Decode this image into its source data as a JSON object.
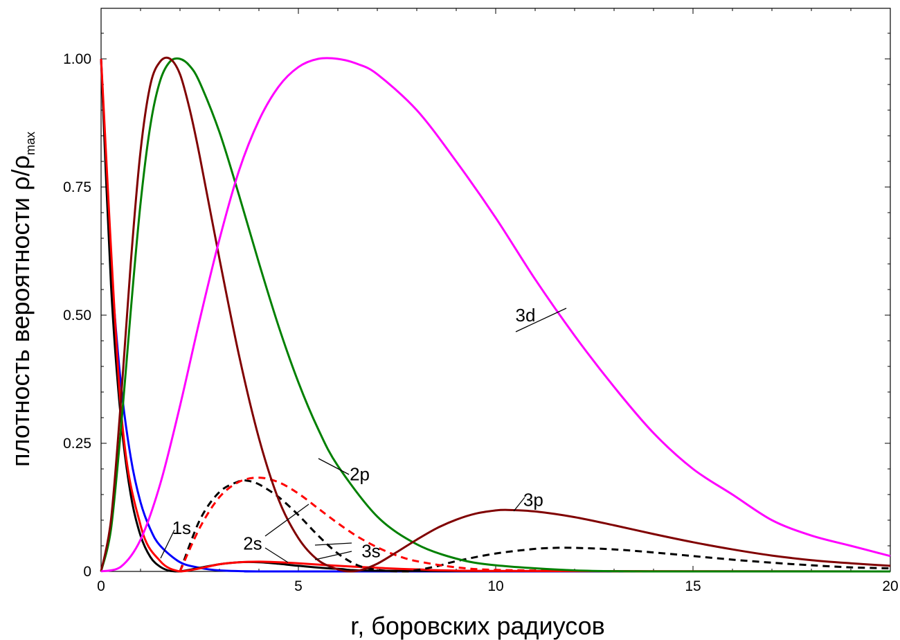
{
  "chart_data": {
    "type": "line",
    "xlabel": "r, боровских радиусов",
    "ylabel_main": "плотность вероятности ρ/ρ",
    "ylabel_sub": "max",
    "xlim": [
      0,
      20
    ],
    "ylim": [
      0,
      1.1
    ],
    "x_ticks": [
      0,
      5,
      10,
      15,
      20
    ],
    "x_tick_labels": [
      "0",
      "5",
      "10",
      "15",
      "20"
    ],
    "y_ticks": [
      0,
      0.25,
      0.5,
      0.75,
      1.0
    ],
    "y_tick_labels": [
      "0",
      "0.25",
      "0.50",
      "0.75",
      "1.00"
    ],
    "grid": false,
    "series": [
      {
        "color": "#0000ff",
        "dash": false,
        "x": [
          0,
          0.25,
          0.5,
          0.75,
          1.0,
          1.25,
          1.5,
          2.0,
          2.5,
          3.0,
          4.0,
          5.0,
          20
        ],
        "y": [
          1.0,
          0.607,
          0.368,
          0.223,
          0.135,
          0.082,
          0.05,
          0.018,
          0.007,
          0.002,
          0.0,
          0.0,
          0.0
        ]
      },
      {
        "color": "#000000",
        "dash": false,
        "x": [
          0,
          0.25,
          0.5,
          0.75,
          1.0,
          1.25,
          1.5,
          1.75,
          2.0,
          2.5,
          3.0,
          3.5,
          4.0,
          4.5,
          5.0,
          6.0,
          8.0,
          20
        ],
        "y": [
          1.0,
          0.56,
          0.3,
          0.15,
          0.07,
          0.028,
          0.009,
          0.001,
          0.0,
          0.007,
          0.014,
          0.018,
          0.018,
          0.015,
          0.011,
          0.005,
          0.001,
          0.0
        ]
      },
      {
        "color": "#ff0000",
        "dash": false,
        "x": [
          0,
          0.5,
          1.0,
          1.5,
          2.0,
          2.5,
          3.0,
          3.5,
          4.0,
          4.5,
          5.0,
          6.0,
          7.0,
          8.0,
          10.0,
          20
        ],
        "y": [
          1.0,
          0.32,
          0.09,
          0.02,
          0.0,
          0.006,
          0.014,
          0.018,
          0.019,
          0.018,
          0.016,
          0.011,
          0.007,
          0.004,
          0.001,
          0.0
        ]
      },
      {
        "color": "#000000",
        "dash": true,
        "x": [
          2.0,
          2.5,
          3.0,
          3.5,
          3.7,
          4.0,
          4.5,
          5.0,
          5.5,
          6.0,
          6.5,
          7.0,
          7.5,
          7.8,
          8.5,
          9.0,
          10.0,
          11.0,
          11.5,
          12.0,
          13.0,
          14.0,
          15.0,
          16.0,
          17.0,
          18.0,
          19.0,
          20.0
        ],
        "y": [
          0.0,
          0.1,
          0.155,
          0.176,
          0.177,
          0.17,
          0.145,
          0.11,
          0.07,
          0.035,
          0.012,
          0.003,
          0.0,
          0.0,
          0.01,
          0.02,
          0.035,
          0.044,
          0.046,
          0.046,
          0.043,
          0.037,
          0.03,
          0.023,
          0.017,
          0.012,
          0.008,
          0.006
        ]
      },
      {
        "color": "#ff0000",
        "dash": true,
        "x": [
          2.0,
          2.5,
          3.0,
          3.5,
          4.0,
          4.5,
          5.0,
          5.5,
          6.0,
          6.5,
          7.0,
          7.5,
          8.0,
          9.0,
          10.0,
          12.0,
          14.0,
          16.0,
          18.0,
          20.0
        ],
        "y": [
          0.0,
          0.085,
          0.145,
          0.175,
          0.183,
          0.174,
          0.152,
          0.123,
          0.094,
          0.068,
          0.047,
          0.031,
          0.02,
          0.008,
          0.003,
          0.001,
          0.0,
          0.0,
          0.0,
          0.0
        ]
      },
      {
        "color": "#008000",
        "dash": false,
        "x": [
          0,
          0.25,
          0.5,
          0.75,
          1.0,
          1.25,
          1.5,
          1.75,
          2.0,
          2.25,
          2.5,
          3.0,
          3.5,
          4.0,
          4.5,
          5.0,
          5.5,
          6.0,
          7.0,
          8.0,
          9.0,
          10.0,
          12.0,
          14.0,
          16.0,
          20.0
        ],
        "y": [
          0.0,
          0.082,
          0.275,
          0.507,
          0.718,
          0.871,
          0.958,
          0.995,
          1.0,
          0.986,
          0.954,
          0.857,
          0.733,
          0.602,
          0.478,
          0.369,
          0.278,
          0.206,
          0.107,
          0.053,
          0.025,
          0.012,
          0.002,
          0.0,
          0.0,
          0.0
        ]
      },
      {
        "color": "#800000",
        "dash": false,
        "x": [
          0,
          0.25,
          0.5,
          0.75,
          1.0,
          1.25,
          1.5,
          1.75,
          2.0,
          2.25,
          2.5,
          3.0,
          3.5,
          4.0,
          4.5,
          5.0,
          5.5,
          6.0,
          6.3,
          6.6,
          7.0,
          7.5,
          8.0,
          8.5,
          9.0,
          9.5,
          10.0,
          10.3,
          11.0,
          12.0,
          13.0,
          14.0,
          15.0,
          16.0,
          17.0,
          18.0,
          19.0,
          20.0
        ],
        "y": [
          0.0,
          0.1,
          0.33,
          0.6,
          0.82,
          0.95,
          0.995,
          1.0,
          0.97,
          0.9,
          0.81,
          0.61,
          0.42,
          0.26,
          0.14,
          0.065,
          0.022,
          0.004,
          0.0,
          0.003,
          0.015,
          0.038,
          0.062,
          0.084,
          0.101,
          0.113,
          0.119,
          0.12,
          0.117,
          0.106,
          0.09,
          0.073,
          0.057,
          0.043,
          0.031,
          0.022,
          0.016,
          0.011
        ]
      },
      {
        "color": "#ff00ff",
        "dash": false,
        "x": [
          0,
          0.5,
          1.0,
          1.5,
          2.0,
          2.5,
          3.0,
          3.5,
          4.0,
          4.5,
          5.0,
          5.5,
          6.0,
          6.5,
          7.0,
          8.0,
          9.0,
          10.0,
          11.0,
          12.0,
          13.0,
          14.0,
          15.0,
          16.0,
          17.0,
          18.0,
          19.0,
          20.0
        ],
        "y": [
          0.0,
          0.009,
          0.062,
          0.171,
          0.323,
          0.491,
          0.648,
          0.783,
          0.88,
          0.946,
          0.984,
          1.0,
          1.0,
          0.99,
          0.97,
          0.9,
          0.8,
          0.69,
          0.57,
          0.46,
          0.36,
          0.27,
          0.2,
          0.15,
          0.1,
          0.07,
          0.05,
          0.03
        ]
      }
    ],
    "annotations": [
      {
        "text": "3d",
        "tx": 10.5,
        "ty": 0.5
      },
      {
        "text": "2p",
        "tx": 6.3,
        "ty": 0.19
      },
      {
        "text": "3p",
        "tx": 10.7,
        "ty": 0.14
      },
      {
        "text": "1s",
        "tx": 1.8,
        "ty": 0.085
      },
      {
        "text": "2s",
        "tx": 3.6,
        "ty": 0.055
      },
      {
        "text": "3s",
        "tx": 6.6,
        "ty": 0.04
      }
    ]
  }
}
